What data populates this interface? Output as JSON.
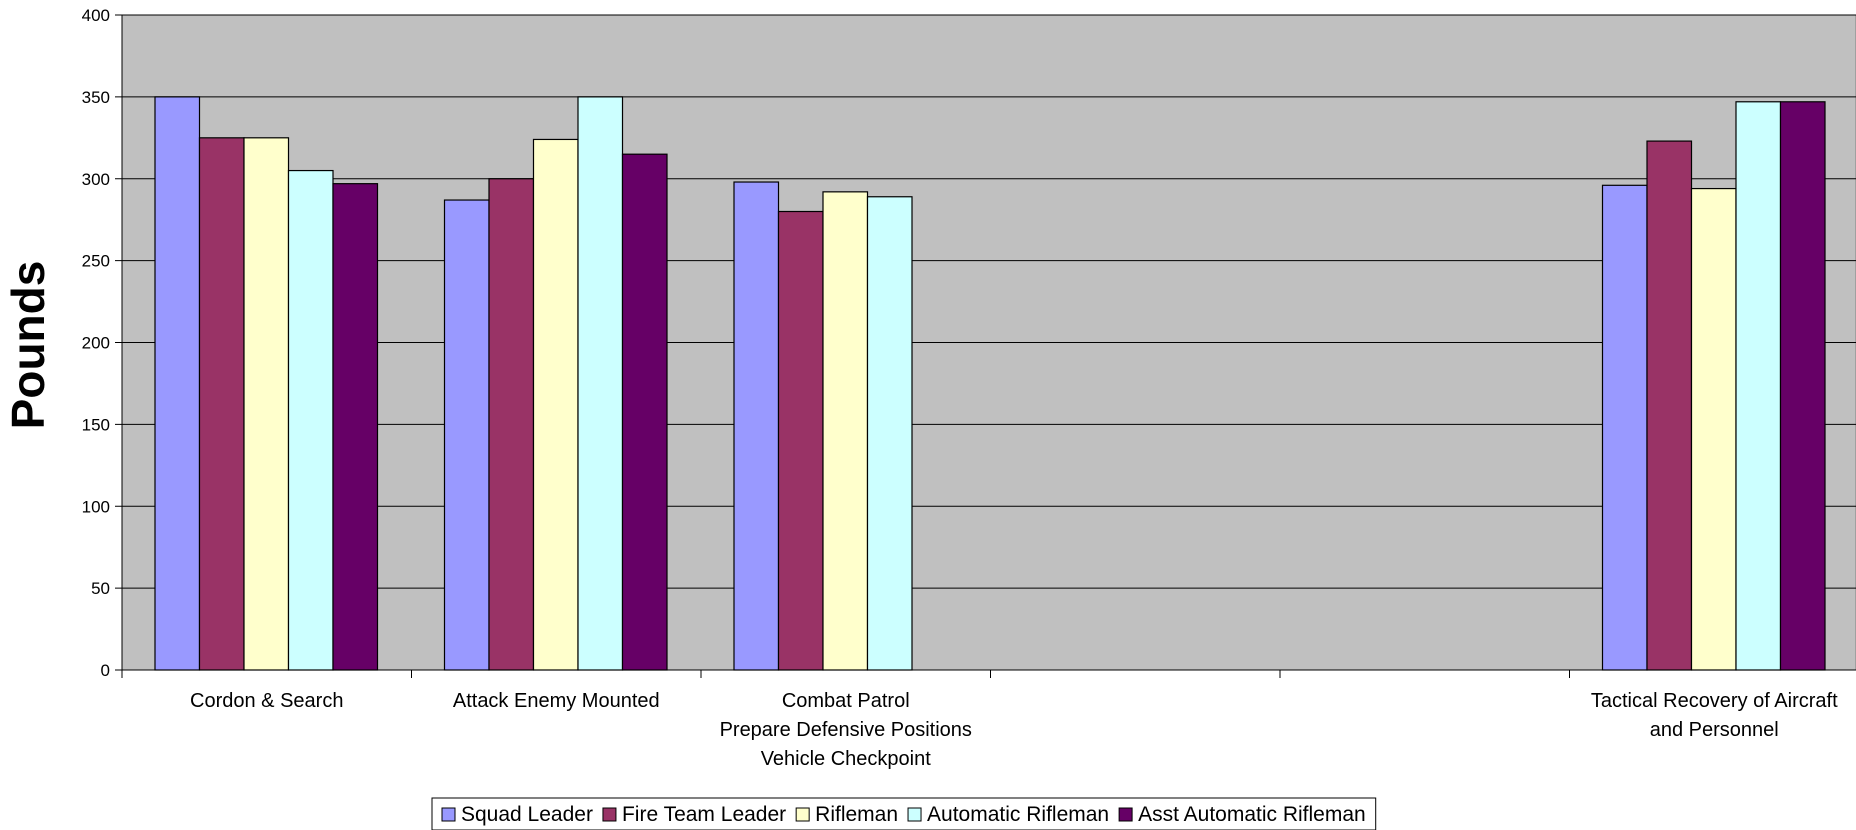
{
  "chart_data": {
    "type": "bar",
    "title": "",
    "xlabel": "",
    "ylabel": "Pounds",
    "ylim": [
      0,
      400
    ],
    "y_ticks": [
      0,
      50,
      100,
      150,
      200,
      250,
      300,
      350,
      400
    ],
    "grid": true,
    "legend_position": "bottom",
    "plot_background": "#c0c0c0",
    "categories": [
      [
        "Cordon & Search"
      ],
      [
        "Attack Enemy Mounted"
      ],
      [
        "Combat Patrol",
        "Prepare Defensive Positions",
        "Vehicle Checkpoint"
      ],
      [],
      [],
      [
        "Tactical Recovery of Aircraft",
        "and Personnel"
      ]
    ],
    "series": [
      {
        "name": "Squad Leader",
        "color": "#9999ff",
        "values": [
          350,
          287,
          298,
          null,
          null,
          296
        ]
      },
      {
        "name": "Fire Team Leader",
        "color": "#993366",
        "values": [
          325,
          300,
          280,
          null,
          null,
          323
        ]
      },
      {
        "name": "Rifleman",
        "color": "#ffffcc",
        "values": [
          325,
          324,
          292,
          null,
          null,
          294
        ]
      },
      {
        "name": "Automatic Rifleman",
        "color": "#ccffff",
        "values": [
          305,
          350,
          289,
          null,
          null,
          347
        ]
      },
      {
        "name": "Asst Automatic Rifleman",
        "color": "#660066",
        "values": [
          297,
          315,
          null,
          null,
          null,
          347
        ]
      }
    ]
  }
}
